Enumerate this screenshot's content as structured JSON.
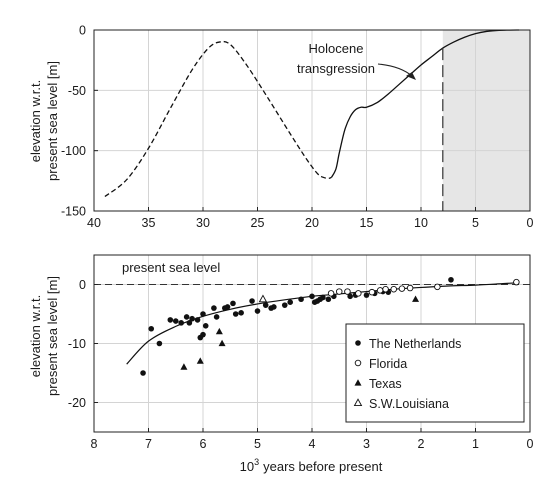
{
  "chart_data": [
    {
      "type": "line",
      "ylabel_line1": "elevation w.r.t.",
      "ylabel_line2": "present sea level [m]",
      "xlabel": "",
      "xlim": [
        40,
        0
      ],
      "ylim": [
        -150,
        0
      ],
      "x_ticks": [
        "40",
        "35",
        "30",
        "25",
        "20",
        "15",
        "10",
        "5",
        "0"
      ],
      "y_ticks": [
        "0",
        "-50",
        "-100",
        "-150"
      ],
      "grid": true,
      "shaded_region": [
        8,
        0
      ],
      "marker_line_x": 8,
      "annotation_line1": "Holocene",
      "annotation_line2": "transgression",
      "series": [
        {
          "style": "dashed",
          "x": [
            39,
            37,
            35,
            33,
            31,
            29.5,
            28.5,
            27.5,
            26,
            24,
            22,
            20.5,
            19.5,
            19,
            18.5,
            18.2
          ],
          "y": [
            -138,
            -124,
            -98,
            -65,
            -33,
            -15,
            -10,
            -12,
            -29,
            -57,
            -86,
            -107,
            -119,
            -122,
            -123,
            -122
          ]
        },
        {
          "style": "solid",
          "x": [
            18.2,
            17.8,
            17.5,
            17,
            16.5,
            16,
            15.5,
            15,
            14,
            13,
            12,
            11,
            10,
            9,
            8,
            7,
            6,
            5,
            4,
            3,
            2,
            1
          ],
          "y": [
            -122,
            -115,
            -102,
            -83,
            -72,
            -66,
            -64,
            -64,
            -60,
            -53,
            -45,
            -37,
            -29,
            -22,
            -15,
            -10,
            -6,
            -3,
            -1.2,
            -0.4,
            -0.1,
            0
          ]
        }
      ]
    },
    {
      "type": "scatter",
      "ylabel_line1": "elevation w.r.t.",
      "ylabel_line2": "present sea level [m]",
      "xlabel": "years before present",
      "xlabel_prefix": "10",
      "xlabel_exp": "3",
      "xlim": [
        8,
        0
      ],
      "ylim": [
        -25,
        5
      ],
      "x_ticks": [
        "8",
        "7",
        "6",
        "5",
        "4",
        "3",
        "2",
        "1",
        "0"
      ],
      "y_ticks": [
        "0",
        "-10",
        "-20"
      ],
      "grid": true,
      "reference_line_label": "present sea level",
      "fit_curve": {
        "x": [
          7.4,
          7.0,
          6.5,
          6.0,
          5.5,
          5.0,
          4.5,
          4.0,
          3.5,
          3.0,
          2.5,
          2.0,
          1.5,
          1.0,
          0.5,
          0.2
        ],
        "y": [
          -13.5,
          -9.6,
          -7.1,
          -5.4,
          -4.2,
          -3.3,
          -2.6,
          -2.0,
          -1.6,
          -1.2,
          -0.8,
          -0.5,
          -0.25,
          -0.1,
          0.15,
          0.3
        ]
      },
      "legend_position": "bottom-right",
      "series": [
        {
          "name": "The Netherlands",
          "marker": "filled-circle",
          "points": [
            [
              7.1,
              -15
            ],
            [
              6.95,
              -7.5
            ],
            [
              6.8,
              -10
            ],
            [
              6.6,
              -6
            ],
            [
              6.5,
              -6.2
            ],
            [
              6.4,
              -6.5
            ],
            [
              6.3,
              -5.5
            ],
            [
              6.25,
              -6.5
            ],
            [
              6.2,
              -5.8
            ],
            [
              6.1,
              -6
            ],
            [
              6.05,
              -9
            ],
            [
              6.0,
              -8.5
            ],
            [
              5.95,
              -7
            ],
            [
              6.0,
              -5
            ],
            [
              5.8,
              -4
            ],
            [
              5.75,
              -5.5
            ],
            [
              5.6,
              -4
            ],
            [
              5.55,
              -3.8
            ],
            [
              5.45,
              -3.2
            ],
            [
              5.4,
              -5
            ],
            [
              5.3,
              -4.8
            ],
            [
              5.1,
              -2.8
            ],
            [
              5.0,
              -4.5
            ],
            [
              4.85,
              -3.5
            ],
            [
              4.75,
              -4
            ],
            [
              4.7,
              -3.8
            ],
            [
              4.5,
              -3.5
            ],
            [
              4.4,
              -3
            ],
            [
              4.2,
              -2.5
            ],
            [
              4.0,
              -2
            ],
            [
              3.95,
              -3
            ],
            [
              3.9,
              -2.8
            ],
            [
              3.85,
              -2.5
            ],
            [
              3.8,
              -2.2
            ],
            [
              3.7,
              -2.5
            ],
            [
              3.6,
              -2
            ],
            [
              3.3,
              -2
            ],
            [
              3.2,
              -1.8
            ],
            [
              3.0,
              -1.8
            ],
            [
              2.85,
              -1.5
            ],
            [
              2.7,
              -1.2
            ],
            [
              2.6,
              -1.3
            ],
            [
              1.45,
              0.8
            ]
          ]
        },
        {
          "name": "Florida",
          "marker": "open-circle",
          "points": [
            [
              3.65,
              -1.5
            ],
            [
              3.5,
              -1.2
            ],
            [
              3.35,
              -1.2
            ],
            [
              3.15,
              -1.5
            ],
            [
              2.9,
              -1.3
            ],
            [
              2.75,
              -1
            ],
            [
              2.65,
              -0.8
            ],
            [
              2.5,
              -0.8
            ],
            [
              2.35,
              -0.7
            ],
            [
              2.2,
              -0.6
            ],
            [
              1.7,
              -0.4
            ],
            [
              0.25,
              0.4
            ]
          ]
        },
        {
          "name": "Texas",
          "marker": "filled-triangle",
          "points": [
            [
              6.35,
              -14
            ],
            [
              6.05,
              -13
            ],
            [
              5.7,
              -8
            ],
            [
              5.65,
              -10
            ],
            [
              2.1,
              -2.5
            ]
          ]
        },
        {
          "name": "S.W.Louisiana",
          "marker": "open-triangle",
          "points": [
            [
              4.9,
              -2.5
            ]
          ]
        }
      ]
    }
  ]
}
